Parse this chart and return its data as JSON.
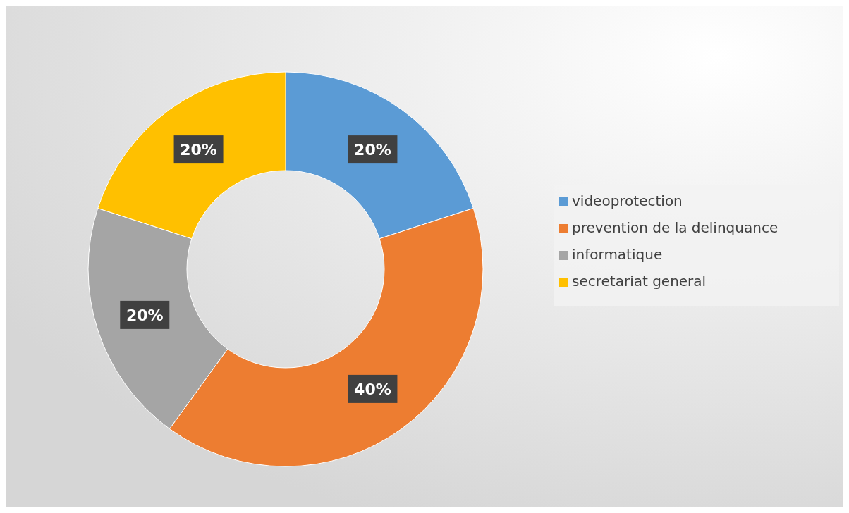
{
  "chart_data": {
    "type": "donut",
    "categories": [
      "videoprotection",
      "prevention de la delinquance",
      "informatique",
      "secretariat general"
    ],
    "values": [
      20,
      40,
      20,
      20
    ],
    "colors": [
      "#5b9bd5",
      "#ed7d31",
      "#a5a5a5",
      "#ffc000"
    ],
    "value_labels": [
      "20%",
      "40%",
      "20%",
      "20%"
    ],
    "legend": "right"
  }
}
